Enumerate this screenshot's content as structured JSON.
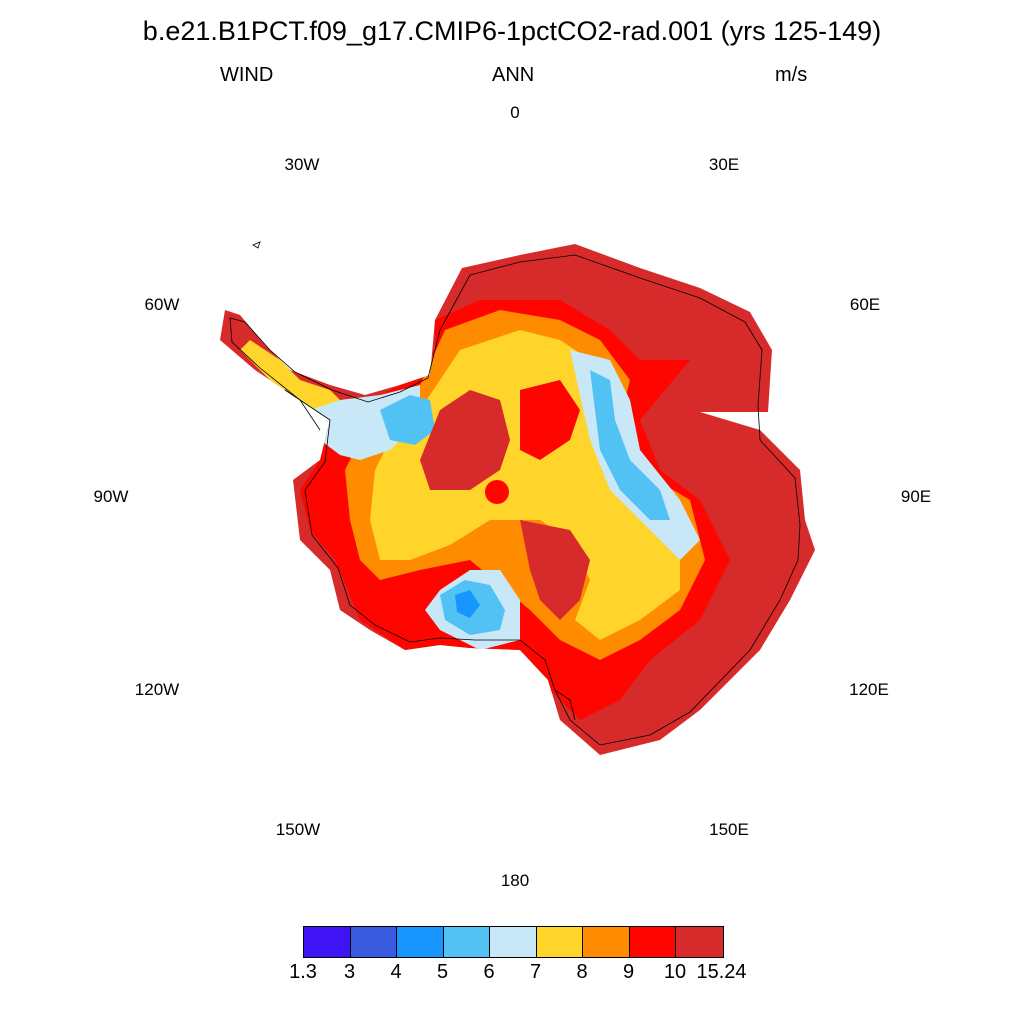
{
  "title": "b.e21.B1PCT.f09_g17.CMIP6-1pctCO2-rad.001 (yrs 125-149)",
  "left_string": "WIND",
  "center_string": "ANN",
  "right_string": "m/s",
  "longitude_labels": [
    "0",
    "30E",
    "60E",
    "90E",
    "120E",
    "150E",
    "180",
    "150W",
    "120W",
    "90W",
    "60W",
    "30W"
  ],
  "colorbar": {
    "colors": [
      "#3e14f5",
      "#3a5be0",
      "#1896ff",
      "#52c2f5",
      "#c9e8f7",
      "#ffd52b",
      "#ff8c00",
      "#ff0500",
      "#d72a2a"
    ],
    "labels": [
      "1.3",
      "3",
      "4",
      "5",
      "6",
      "7",
      "8",
      "9",
      "10",
      "15.24"
    ]
  }
}
